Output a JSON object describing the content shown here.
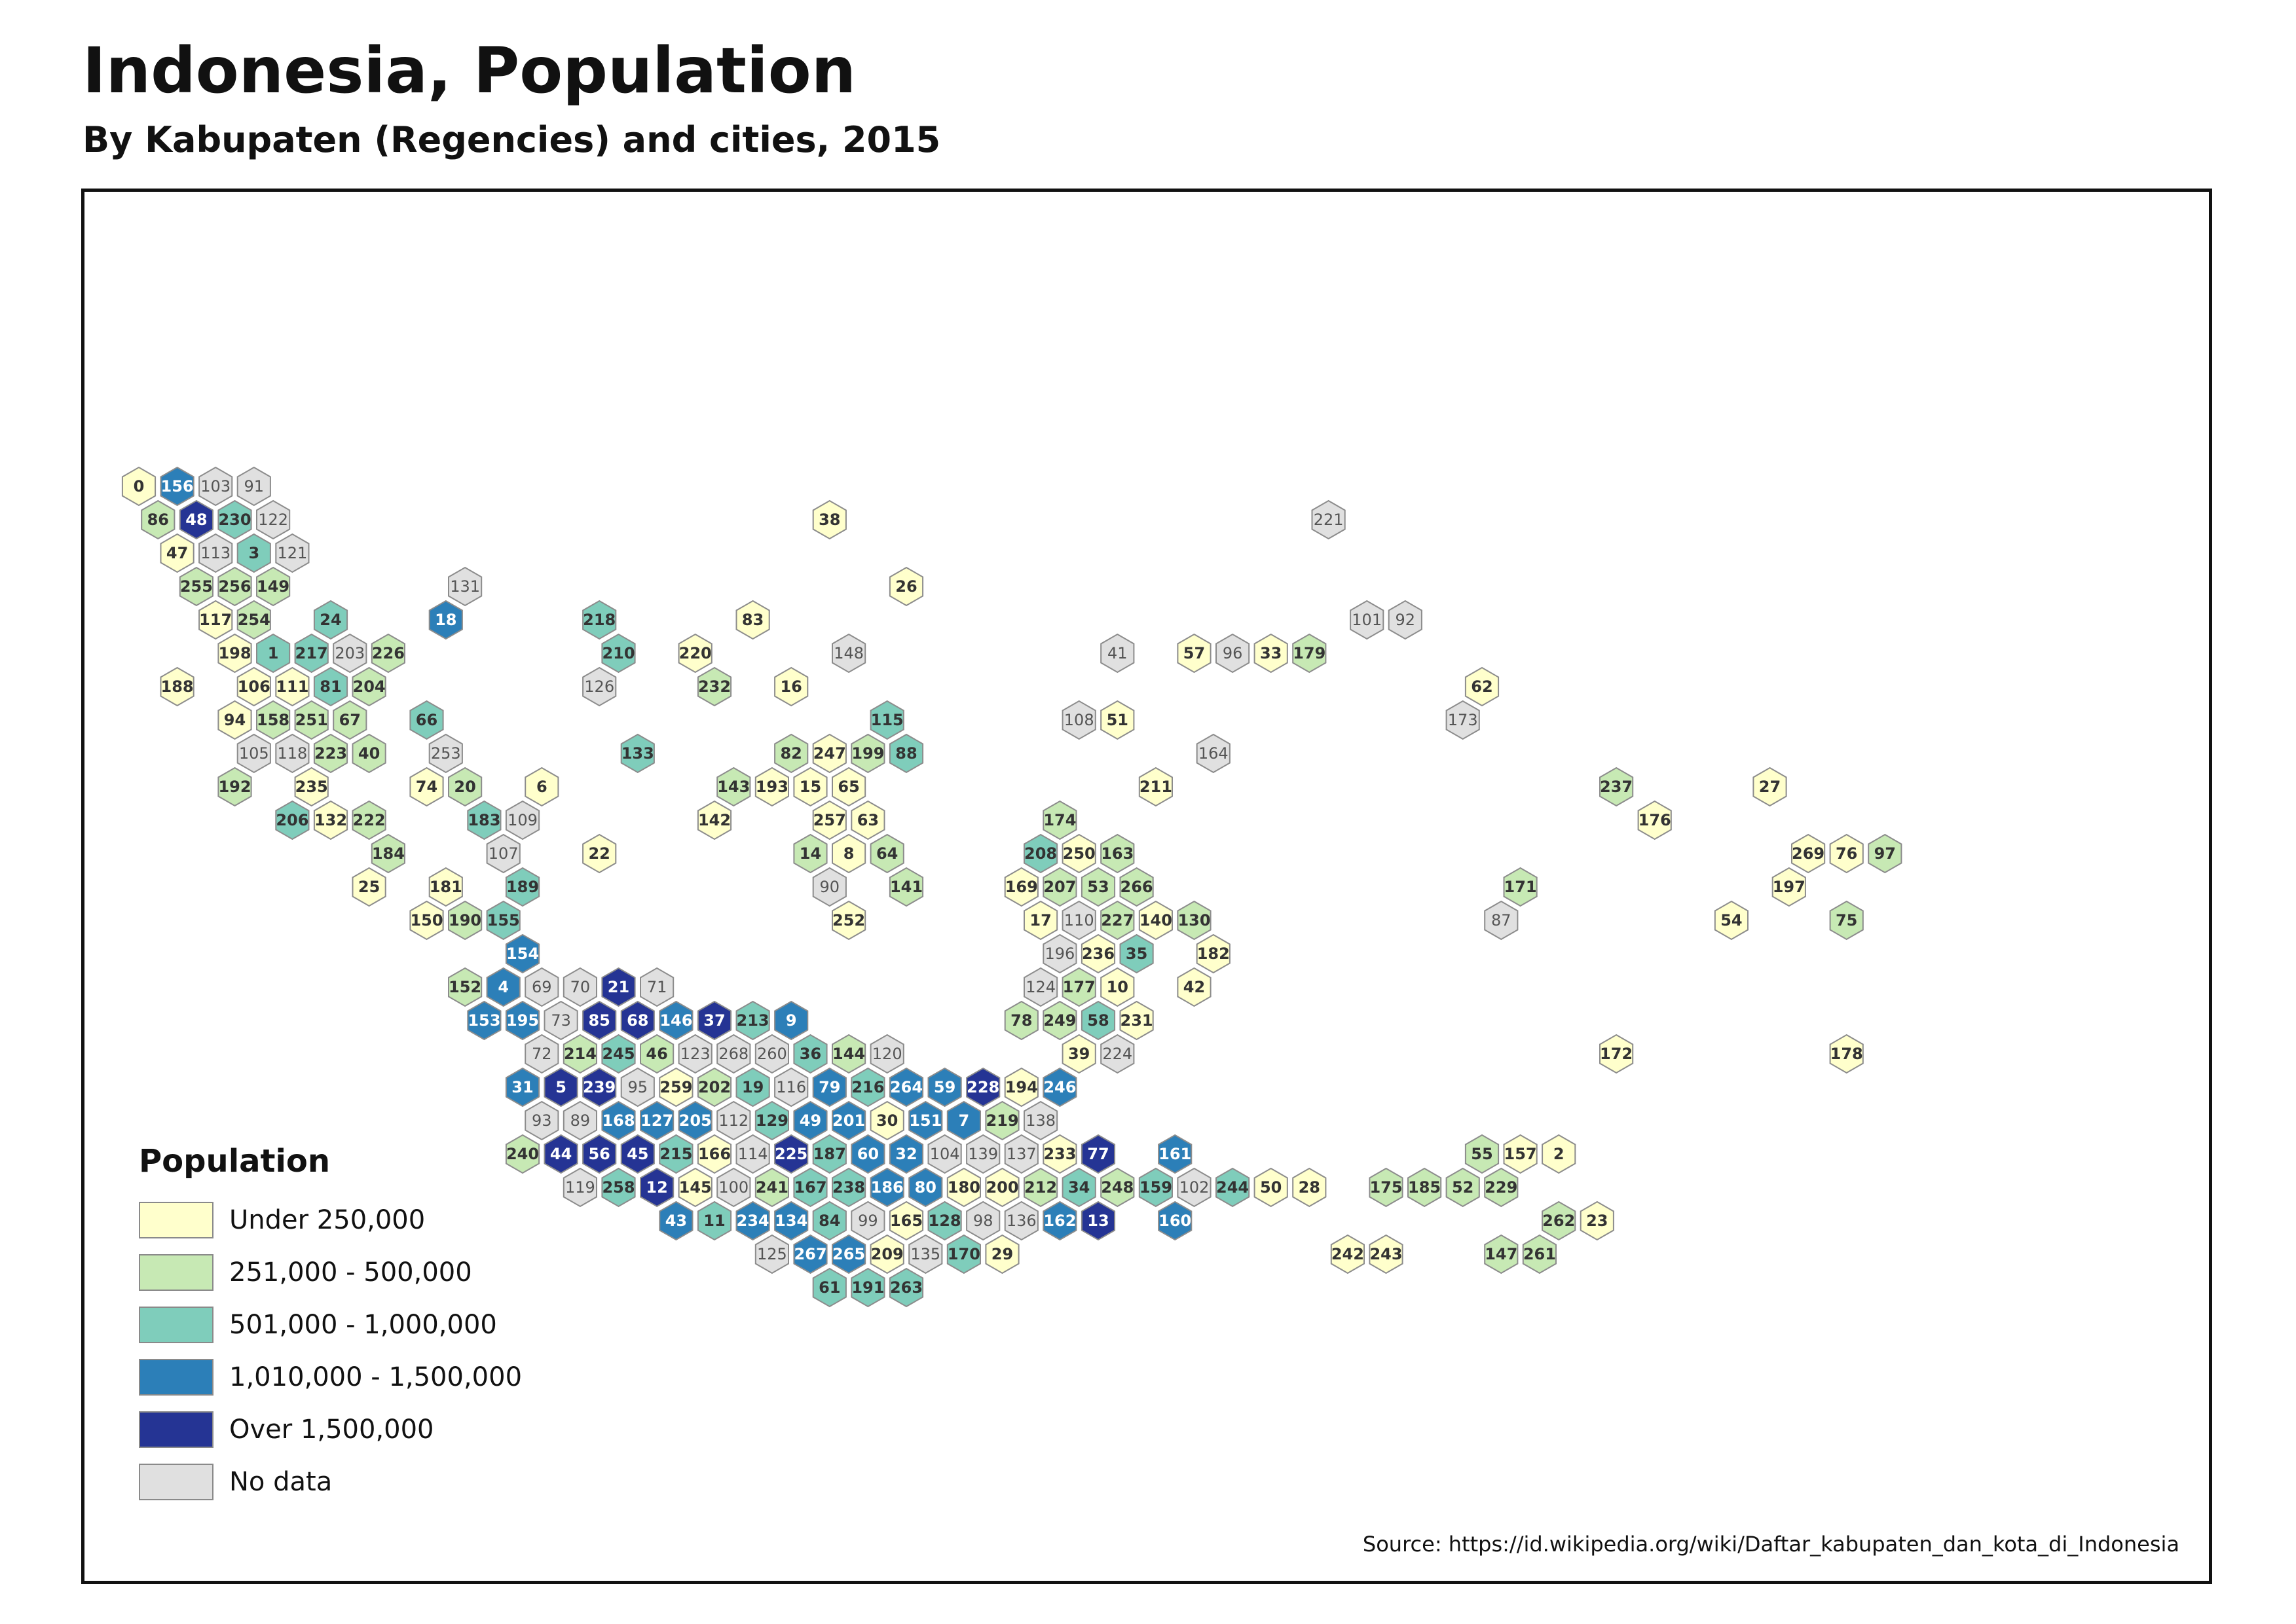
{
  "title": "Indonesia, Population",
  "subtitle": "By Kabupaten (Regencies) and cities, 2015",
  "source": "Source: https://id.wikipedia.org/wiki/Daftar_kabupaten_dan_kota_di_Indonesia",
  "legend": {
    "title": "Population",
    "classes": [
      {
        "key": "a",
        "label": "Under 250,000",
        "color": "#ffffcc"
      },
      {
        "key": "b",
        "label": "251,000 - 500,000",
        "color": "#c7e9b4"
      },
      {
        "key": "c",
        "label": "501,000 - 1,000,000",
        "color": "#7fcdbb"
      },
      {
        "key": "d",
        "label": "1,010,000 - 1,500,000",
        "color": "#2c7fb8"
      },
      {
        "key": "e",
        "label": "Over 1,500,000",
        "color": "#253494"
      },
      {
        "key": "n",
        "label": "No data",
        "color": "#e0e0e0"
      }
    ]
  },
  "hex_rows": [
    {
      "row": 0,
      "cells": [
        [
          0,
          "0",
          "a"
        ],
        [
          2,
          "156",
          "d"
        ],
        [
          4,
          "103",
          "n"
        ],
        [
          6,
          "91",
          "n"
        ]
      ]
    },
    {
      "row": 1,
      "cells": [
        [
          1,
          "86",
          "b"
        ],
        [
          3,
          "48",
          "e"
        ],
        [
          5,
          "230",
          "c"
        ],
        [
          7,
          "122",
          "n"
        ],
        [
          36,
          "38",
          "a"
        ],
        [
          62,
          "221",
          "n"
        ]
      ]
    },
    {
      "row": 2,
      "cells": [
        [
          2,
          "47",
          "a"
        ],
        [
          4,
          "113",
          "n"
        ],
        [
          6,
          "3",
          "c"
        ],
        [
          8,
          "121",
          "n"
        ]
      ]
    },
    {
      "row": 3,
      "cells": [
        [
          3,
          "255",
          "b"
        ],
        [
          5,
          "256",
          "b"
        ],
        [
          7,
          "149",
          "b"
        ],
        [
          17,
          "131",
          "n"
        ],
        [
          40,
          "26",
          "a"
        ]
      ]
    },
    {
      "row": 4,
      "cells": [
        [
          4,
          "117",
          "a"
        ],
        [
          6,
          "254",
          "b"
        ],
        [
          10,
          "24",
          "c"
        ],
        [
          16,
          "18",
          "d"
        ],
        [
          24,
          "218",
          "c"
        ],
        [
          32,
          "83",
          "a"
        ],
        [
          64,
          "101",
          "n"
        ],
        [
          66,
          "92",
          "n"
        ]
      ]
    },
    {
      "row": 5,
      "cells": [
        [
          5,
          "198",
          "a"
        ],
        [
          7,
          "1",
          "c"
        ],
        [
          9,
          "217",
          "c"
        ],
        [
          11,
          "203",
          "n"
        ],
        [
          13,
          "226",
          "b"
        ],
        [
          25,
          "210",
          "c"
        ],
        [
          29,
          "220",
          "a"
        ],
        [
          37,
          "148",
          "n"
        ],
        [
          51,
          "41",
          "n"
        ],
        [
          55,
          "57",
          "a"
        ],
        [
          57,
          "96",
          "n"
        ],
        [
          59,
          "33",
          "a"
        ],
        [
          61,
          "179",
          "b"
        ]
      ]
    },
    {
      "row": 6,
      "cells": [
        [
          2,
          "188",
          "a"
        ],
        [
          6,
          "106",
          "a"
        ],
        [
          8,
          "111",
          "a"
        ],
        [
          10,
          "81",
          "c"
        ],
        [
          12,
          "204",
          "b"
        ],
        [
          24,
          "126",
          "n"
        ],
        [
          30,
          "232",
          "b"
        ],
        [
          34,
          "16",
          "a"
        ],
        [
          70,
          "62",
          "a"
        ]
      ]
    },
    {
      "row": 7,
      "cells": [
        [
          5,
          "94",
          "a"
        ],
        [
          7,
          "158",
          "b"
        ],
        [
          9,
          "251",
          "b"
        ],
        [
          11,
          "67",
          "b"
        ],
        [
          15,
          "66",
          "c"
        ],
        [
          39,
          "115",
          "c"
        ],
        [
          49,
          "108",
          "n"
        ],
        [
          51,
          "51",
          "a"
        ],
        [
          69,
          "173",
          "n"
        ]
      ]
    },
    {
      "row": 8,
      "cells": [
        [
          6,
          "105",
          "n"
        ],
        [
          8,
          "118",
          "n"
        ],
        [
          10,
          "223",
          "b"
        ],
        [
          12,
          "40",
          "b"
        ],
        [
          16,
          "253",
          "n"
        ],
        [
          26,
          "133",
          "c"
        ],
        [
          34,
          "82",
          "b"
        ],
        [
          36,
          "247",
          "a"
        ],
        [
          38,
          "199",
          "b"
        ],
        [
          40,
          "88",
          "c"
        ],
        [
          56,
          "164",
          "n"
        ]
      ]
    },
    {
      "row": 9,
      "cells": [
        [
          5,
          "192",
          "b"
        ],
        [
          9,
          "235",
          "a"
        ],
        [
          15,
          "74",
          "a"
        ],
        [
          17,
          "20",
          "b"
        ],
        [
          21,
          "6",
          "a"
        ],
        [
          31,
          "143",
          "b"
        ],
        [
          33,
          "193",
          "a"
        ],
        [
          35,
          "15",
          "a"
        ],
        [
          37,
          "65",
          "a"
        ],
        [
          53,
          "211",
          "a"
        ],
        [
          77,
          "237",
          "b"
        ],
        [
          85,
          "27",
          "a"
        ]
      ]
    },
    {
      "row": 10,
      "cells": [
        [
          8,
          "206",
          "c"
        ],
        [
          10,
          "132",
          "a"
        ],
        [
          12,
          "222",
          "b"
        ],
        [
          18,
          "183",
          "c"
        ],
        [
          20,
          "109",
          "n"
        ],
        [
          30,
          "142",
          "a"
        ],
        [
          36,
          "257",
          "a"
        ],
        [
          38,
          "63",
          "a"
        ],
        [
          48,
          "174",
          "b"
        ],
        [
          79,
          "176",
          "a"
        ]
      ]
    },
    {
      "row": 11,
      "cells": [
        [
          13,
          "184",
          "b"
        ],
        [
          19,
          "107",
          "n"
        ],
        [
          24,
          "22",
          "a"
        ],
        [
          35,
          "14",
          "b"
        ],
        [
          37,
          "8",
          "a"
        ],
        [
          39,
          "64",
          "b"
        ],
        [
          47,
          "208",
          "c"
        ],
        [
          49,
          "250",
          "a"
        ],
        [
          51,
          "163",
          "b"
        ],
        [
          87,
          "269",
          "a"
        ],
        [
          89,
          "76",
          "a"
        ],
        [
          91,
          "97",
          "b"
        ]
      ]
    },
    {
      "row": 12,
      "cells": [
        [
          12,
          "25",
          "a"
        ],
        [
          16,
          "181",
          "a"
        ],
        [
          20,
          "189",
          "c"
        ],
        [
          36,
          "90",
          "n"
        ],
        [
          40,
          "141",
          "b"
        ],
        [
          46,
          "169",
          "a"
        ],
        [
          48,
          "207",
          "b"
        ],
        [
          50,
          "53",
          "b"
        ],
        [
          52,
          "266",
          "b"
        ],
        [
          72,
          "171",
          "b"
        ],
        [
          86,
          "197",
          "a"
        ]
      ]
    },
    {
      "row": 13,
      "cells": [
        [
          15,
          "150",
          "a"
        ],
        [
          17,
          "190",
          "b"
        ],
        [
          19,
          "155",
          "c"
        ],
        [
          37,
          "252",
          "a"
        ],
        [
          47,
          "17",
          "a"
        ],
        [
          49,
          "110",
          "n"
        ],
        [
          51,
          "227",
          "b"
        ],
        [
          53,
          "140",
          "a"
        ],
        [
          55,
          "130",
          "b"
        ],
        [
          71,
          "87",
          "n"
        ],
        [
          83,
          "54",
          "a"
        ],
        [
          89,
          "75",
          "b"
        ]
      ]
    },
    {
      "row": 14,
      "cells": [
        [
          20,
          "154",
          "d"
        ],
        [
          48,
          "196",
          "n"
        ],
        [
          50,
          "236",
          "a"
        ],
        [
          52,
          "35",
          "c"
        ],
        [
          56,
          "182",
          "a"
        ]
      ]
    },
    {
      "row": 15,
      "cells": [
        [
          17,
          "152",
          "b"
        ],
        [
          19,
          "4",
          "d"
        ],
        [
          21,
          "69",
          "n"
        ],
        [
          23,
          "70",
          "n"
        ],
        [
          25,
          "21",
          "e"
        ],
        [
          27,
          "71",
          "n"
        ],
        [
          47,
          "124",
          "n"
        ],
        [
          49,
          "177",
          "b"
        ],
        [
          51,
          "10",
          "a"
        ],
        [
          55,
          "42",
          "a"
        ]
      ]
    },
    {
      "row": 16,
      "cells": [
        [
          18,
          "153",
          "d"
        ],
        [
          20,
          "195",
          "d"
        ],
        [
          22,
          "73",
          "n"
        ],
        [
          24,
          "85",
          "e"
        ],
        [
          26,
          "68",
          "e"
        ],
        [
          28,
          "146",
          "d"
        ],
        [
          30,
          "37",
          "e"
        ],
        [
          32,
          "213",
          "c"
        ],
        [
          34,
          "9",
          "d"
        ],
        [
          46,
          "78",
          "b"
        ],
        [
          48,
          "249",
          "b"
        ],
        [
          50,
          "58",
          "c"
        ],
        [
          52,
          "231",
          "a"
        ]
      ]
    },
    {
      "row": 17,
      "cells": [
        [
          21,
          "72",
          "n"
        ],
        [
          23,
          "214",
          "b"
        ],
        [
          25,
          "245",
          "c"
        ],
        [
          27,
          "46",
          "b"
        ],
        [
          29,
          "123",
          "n"
        ],
        [
          31,
          "268",
          "n"
        ],
        [
          33,
          "260",
          "n"
        ],
        [
          35,
          "36",
          "c"
        ],
        [
          37,
          "144",
          "b"
        ],
        [
          39,
          "120",
          "n"
        ],
        [
          49,
          "39",
          "a"
        ],
        [
          51,
          "224",
          "n"
        ],
        [
          77,
          "172",
          "a"
        ],
        [
          89,
          "178",
          "a"
        ]
      ]
    },
    {
      "row": 18,
      "cells": [
        [
          20,
          "31",
          "d"
        ],
        [
          22,
          "5",
          "e"
        ],
        [
          24,
          "239",
          "e"
        ],
        [
          26,
          "95",
          "n"
        ],
        [
          28,
          "259",
          "a"
        ],
        [
          30,
          "202",
          "b"
        ],
        [
          32,
          "19",
          "c"
        ],
        [
          34,
          "116",
          "n"
        ],
        [
          36,
          "79",
          "d"
        ],
        [
          38,
          "216",
          "c"
        ],
        [
          40,
          "264",
          "d"
        ],
        [
          42,
          "59",
          "d"
        ],
        [
          44,
          "228",
          "e"
        ],
        [
          46,
          "194",
          "a"
        ],
        [
          48,
          "246",
          "d"
        ]
      ]
    },
    {
      "row": 19,
      "cells": [
        [
          21,
          "93",
          "n"
        ],
        [
          23,
          "89",
          "n"
        ],
        [
          25,
          "168",
          "d"
        ],
        [
          27,
          "127",
          "d"
        ],
        [
          29,
          "205",
          "d"
        ],
        [
          31,
          "112",
          "n"
        ],
        [
          33,
          "129",
          "c"
        ],
        [
          35,
          "49",
          "d"
        ],
        [
          37,
          "201",
          "d"
        ],
        [
          39,
          "30",
          "a"
        ],
        [
          41,
          "151",
          "d"
        ],
        [
          43,
          "7",
          "d"
        ],
        [
          45,
          "219",
          "b"
        ],
        [
          47,
          "138",
          "n"
        ]
      ]
    },
    {
      "row": 20,
      "cells": [
        [
          20,
          "240",
          "b"
        ],
        [
          22,
          "44",
          "e"
        ],
        [
          24,
          "56",
          "e"
        ],
        [
          26,
          "45",
          "e"
        ],
        [
          28,
          "215",
          "c"
        ],
        [
          30,
          "166",
          "a"
        ],
        [
          32,
          "114",
          "n"
        ],
        [
          34,
          "225",
          "e"
        ],
        [
          36,
          "187",
          "c"
        ],
        [
          38,
          "60",
          "d"
        ],
        [
          40,
          "32",
          "d"
        ],
        [
          42,
          "104",
          "n"
        ],
        [
          44,
          "139",
          "n"
        ],
        [
          46,
          "137",
          "n"
        ],
        [
          48,
          "233",
          "a"
        ],
        [
          50,
          "77",
          "e"
        ],
        [
          54,
          "161",
          "d"
        ],
        [
          70,
          "55",
          "b"
        ],
        [
          72,
          "157",
          "a"
        ],
        [
          74,
          "2",
          "a"
        ]
      ]
    },
    {
      "row": 21,
      "cells": [
        [
          23,
          "119",
          "n"
        ],
        [
          25,
          "258",
          "c"
        ],
        [
          27,
          "12",
          "e"
        ],
        [
          29,
          "145",
          "a"
        ],
        [
          31,
          "100",
          "n"
        ],
        [
          33,
          "241",
          "b"
        ],
        [
          35,
          "167",
          "c"
        ],
        [
          37,
          "238",
          "c"
        ],
        [
          39,
          "186",
          "d"
        ],
        [
          41,
          "80",
          "d"
        ],
        [
          43,
          "180",
          "a"
        ],
        [
          45,
          "200",
          "a"
        ],
        [
          47,
          "212",
          "b"
        ],
        [
          49,
          "34",
          "c"
        ],
        [
          51,
          "248",
          "b"
        ],
        [
          53,
          "159",
          "c"
        ],
        [
          55,
          "102",
          "n"
        ],
        [
          57,
          "244",
          "c"
        ],
        [
          59,
          "50",
          "a"
        ],
        [
          61,
          "28",
          "a"
        ],
        [
          65,
          "175",
          "b"
        ],
        [
          67,
          "185",
          "b"
        ],
        [
          69,
          "52",
          "b"
        ],
        [
          71,
          "229",
          "b"
        ]
      ]
    },
    {
      "row": 22,
      "cells": [
        [
          28,
          "43",
          "d"
        ],
        [
          30,
          "11",
          "c"
        ],
        [
          32,
          "234",
          "d"
        ],
        [
          34,
          "134",
          "d"
        ],
        [
          36,
          "84",
          "c"
        ],
        [
          38,
          "99",
          "n"
        ],
        [
          40,
          "165",
          "a"
        ],
        [
          42,
          "128",
          "c"
        ],
        [
          44,
          "98",
          "n"
        ],
        [
          46,
          "136",
          "n"
        ],
        [
          48,
          "162",
          "d"
        ],
        [
          50,
          "13",
          "e"
        ],
        [
          54,
          "160",
          "d"
        ],
        [
          74,
          "262",
          "b"
        ],
        [
          76,
          "23",
          "a"
        ]
      ]
    },
    {
      "row": 23,
      "cells": [
        [
          33,
          "125",
          "n"
        ],
        [
          35,
          "267",
          "d"
        ],
        [
          37,
          "265",
          "d"
        ],
        [
          39,
          "209",
          "a"
        ],
        [
          41,
          "135",
          "n"
        ],
        [
          43,
          "170",
          "c"
        ],
        [
          45,
          "29",
          "a"
        ],
        [
          63,
          "242",
          "a"
        ],
        [
          65,
          "243",
          "a"
        ],
        [
          71,
          "147",
          "b"
        ],
        [
          73,
          "261",
          "b"
        ]
      ]
    },
    {
      "row": 24,
      "cells": [
        [
          36,
          "61",
          "c"
        ],
        [
          38,
          "191",
          "c"
        ],
        [
          40,
          "263",
          "c"
        ]
      ]
    }
  ]
}
